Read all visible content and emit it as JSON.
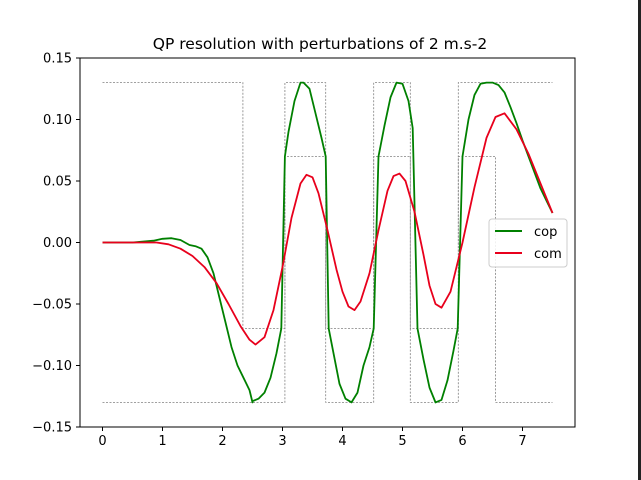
{
  "chart_data": {
    "type": "line",
    "title": "QP resolution with perturbations of 2 m.s-2",
    "xlabel": "",
    "ylabel": "",
    "xlim": [
      -0.375,
      7.875
    ],
    "ylim": [
      -0.15,
      0.15
    ],
    "x_ticks": [
      0,
      1,
      2,
      3,
      4,
      5,
      6,
      7
    ],
    "x_tick_labels": [
      "0",
      "1",
      "2",
      "3",
      "4",
      "5",
      "6",
      "7"
    ],
    "y_ticks": [
      -0.15,
      -0.1,
      -0.05,
      0.0,
      0.05,
      0.1,
      0.15
    ],
    "y_tick_labels": [
      "−0.15",
      "−0.10",
      "−0.05",
      "0.00",
      "0.05",
      "0.10",
      "0.15"
    ],
    "grid": false,
    "legend": {
      "placement": "center-right",
      "entries": [
        "cop",
        "com"
      ]
    },
    "colors": {
      "cop": "#008000",
      "com": "#e8001c",
      "bounds": "#808080"
    },
    "series": [
      {
        "name": "cop",
        "color": "#008000",
        "x": [
          0,
          0.5,
          0.85,
          1.0,
          1.15,
          1.3,
          1.45,
          1.55,
          1.65,
          1.75,
          1.85,
          1.95,
          2.05,
          2.15,
          2.25,
          2.35,
          2.45,
          2.5,
          2.5,
          2.6,
          2.7,
          2.8,
          2.9,
          2.98,
          3.04,
          3.1,
          3.2,
          3.3,
          3.35,
          3.45,
          3.55,
          3.65,
          3.72,
          3.77,
          3.85,
          3.95,
          4.05,
          4.15,
          4.25,
          4.35,
          4.45,
          4.52,
          4.6,
          4.7,
          4.8,
          4.9,
          5.0,
          5.1,
          5.17,
          5.25,
          5.35,
          5.45,
          5.55,
          5.65,
          5.75,
          5.85,
          5.92,
          6.0,
          6.1,
          6.2,
          6.3,
          6.4,
          6.5,
          6.6,
          6.7,
          6.8,
          6.9,
          7.0,
          7.1,
          7.2,
          7.3,
          7.4,
          7.5
        ],
        "values": [
          0.0,
          0.0,
          0.0015,
          0.003,
          0.0035,
          0.002,
          -0.002,
          -0.003,
          -0.005,
          -0.012,
          -0.025,
          -0.045,
          -0.065,
          -0.085,
          -0.1,
          -0.11,
          -0.12,
          -0.13,
          -0.129,
          -0.127,
          -0.122,
          -0.11,
          -0.09,
          -0.07,
          0.07,
          0.09,
          0.115,
          0.13,
          0.13,
          0.125,
          0.105,
          0.085,
          0.07,
          -0.07,
          -0.09,
          -0.115,
          -0.127,
          -0.13,
          -0.122,
          -0.1,
          -0.085,
          -0.07,
          0.07,
          0.095,
          0.118,
          0.13,
          0.129,
          0.115,
          0.093,
          -0.07,
          -0.095,
          -0.118,
          -0.13,
          -0.128,
          -0.112,
          -0.088,
          -0.07,
          0.07,
          0.1,
          0.12,
          0.129,
          0.13,
          0.13,
          0.128,
          0.122,
          0.11,
          0.097,
          0.083,
          0.07,
          0.057,
          0.044,
          0.034,
          0.024
        ]
      },
      {
        "name": "com",
        "color": "#e8001c",
        "x": [
          0,
          0.5,
          0.9,
          1.1,
          1.3,
          1.5,
          1.7,
          1.9,
          2.1,
          2.3,
          2.45,
          2.55,
          2.7,
          2.85,
          3.0,
          3.15,
          3.3,
          3.4,
          3.5,
          3.6,
          3.75,
          3.9,
          4.0,
          4.1,
          4.2,
          4.3,
          4.45,
          4.6,
          4.75,
          4.85,
          4.95,
          5.05,
          5.2,
          5.35,
          5.45,
          5.55,
          5.65,
          5.8,
          6.0,
          6.2,
          6.4,
          6.55,
          6.7,
          6.9,
          7.1,
          7.3,
          7.5
        ],
        "values": [
          0.0,
          0.0,
          0.0,
          -0.0015,
          -0.005,
          -0.011,
          -0.02,
          -0.033,
          -0.05,
          -0.068,
          -0.079,
          -0.083,
          -0.077,
          -0.055,
          -0.02,
          0.02,
          0.048,
          0.055,
          0.053,
          0.04,
          0.01,
          -0.022,
          -0.04,
          -0.052,
          -0.055,
          -0.048,
          -0.025,
          0.01,
          0.042,
          0.054,
          0.056,
          0.05,
          0.025,
          -0.01,
          -0.035,
          -0.05,
          -0.053,
          -0.04,
          0.0,
          0.045,
          0.085,
          0.102,
          0.105,
          0.092,
          0.072,
          0.048,
          0.024
        ]
      }
    ],
    "bounds": [
      {
        "x": [
          0,
          2.34,
          2.34,
          3.04,
          3.04,
          3.72,
          3.72,
          4.52,
          4.52,
          5.13,
          5.13,
          5.93,
          5.93,
          6.55,
          6.55,
          7.5
        ],
        "values": [
          0.13,
          0.13,
          -0.07,
          -0.07,
          0.13,
          0.13,
          -0.07,
          -0.07,
          0.13,
          0.13,
          -0.07,
          -0.07,
          0.13,
          0.13,
          0.13,
          0.13
        ]
      },
      {
        "x": [
          0,
          3.04,
          3.04,
          3.72,
          3.72,
          4.52,
          4.52,
          5.13,
          5.13,
          5.93,
          5.93,
          6.55,
          6.55,
          7.5
        ],
        "values": [
          -0.13,
          -0.13,
          0.07,
          0.07,
          -0.13,
          -0.13,
          0.07,
          0.07,
          -0.13,
          -0.13,
          0.07,
          0.07,
          -0.13,
          -0.13
        ]
      }
    ]
  }
}
